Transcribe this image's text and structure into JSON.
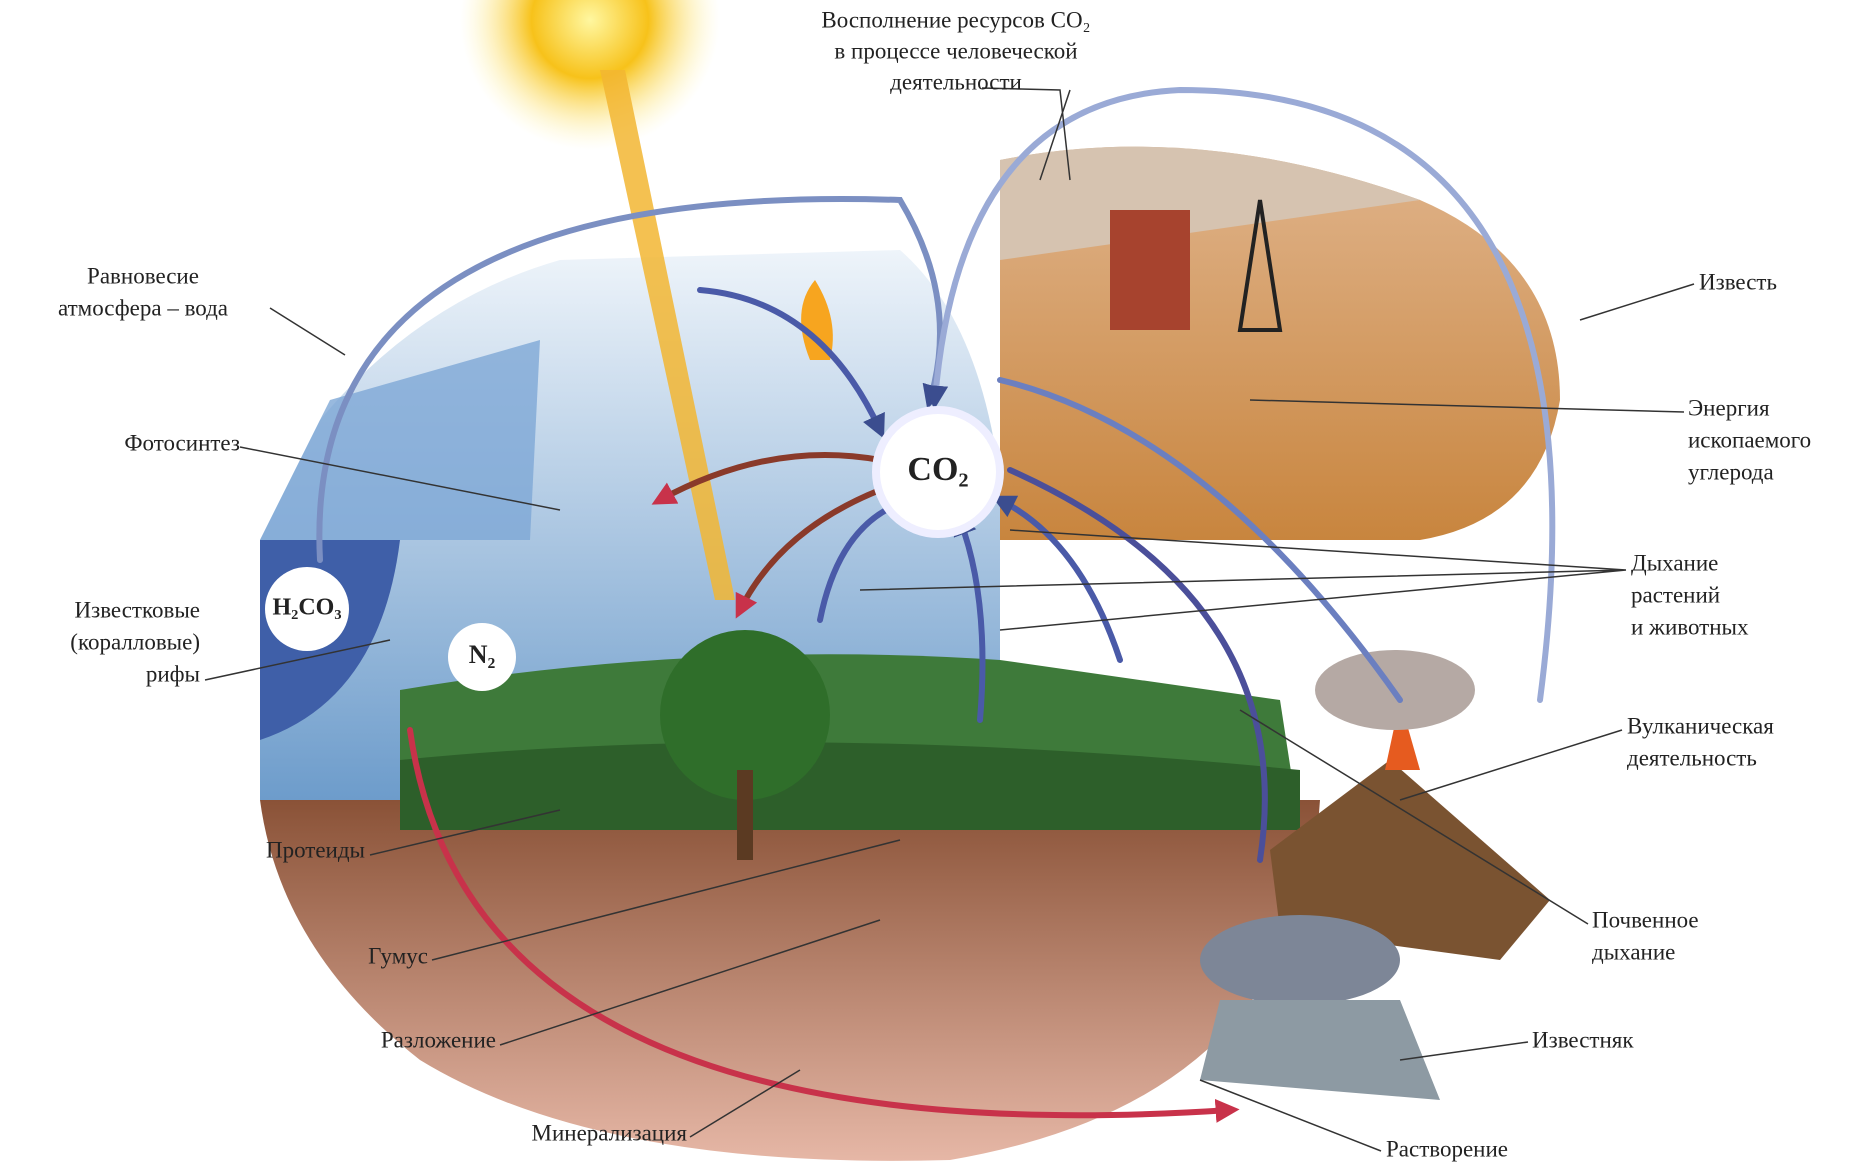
{
  "header": {
    "lines": [
      "Восполнение ресурсов CO₂",
      "в процессе человеческой",
      "деятельности"
    ]
  },
  "bubbles": {
    "co2": "CO₂",
    "h2co3": "H₂CO₃",
    "n2": "N₂"
  },
  "labels": [
    {
      "lines": [
        "Равновесие",
        "атмосфера – вода"
      ]
    },
    {
      "lines": [
        "Фотосинтез"
      ]
    },
    {
      "lines": [
        "Известковые",
        "(коралловые)",
        "рифы"
      ]
    },
    {
      "lines": [
        "Протеиды"
      ]
    },
    {
      "lines": [
        "Гумус"
      ]
    },
    {
      "lines": [
        "Разложение"
      ]
    },
    {
      "lines": [
        "Минерализация"
      ]
    },
    {
      "lines": [
        "Известь"
      ]
    },
    {
      "lines": [
        "Энергия",
        "ископаемого",
        "углерода"
      ]
    },
    {
      "lines": [
        "Дыхание",
        "растений",
        "и животных"
      ]
    },
    {
      "lines": [
        "Вулканическая",
        "деятельность"
      ]
    },
    {
      "lines": [
        "Почвенное",
        "дыхание"
      ]
    },
    {
      "lines": [
        "Известняк"
      ]
    },
    {
      "lines": [
        "Растворение"
      ]
    }
  ]
}
